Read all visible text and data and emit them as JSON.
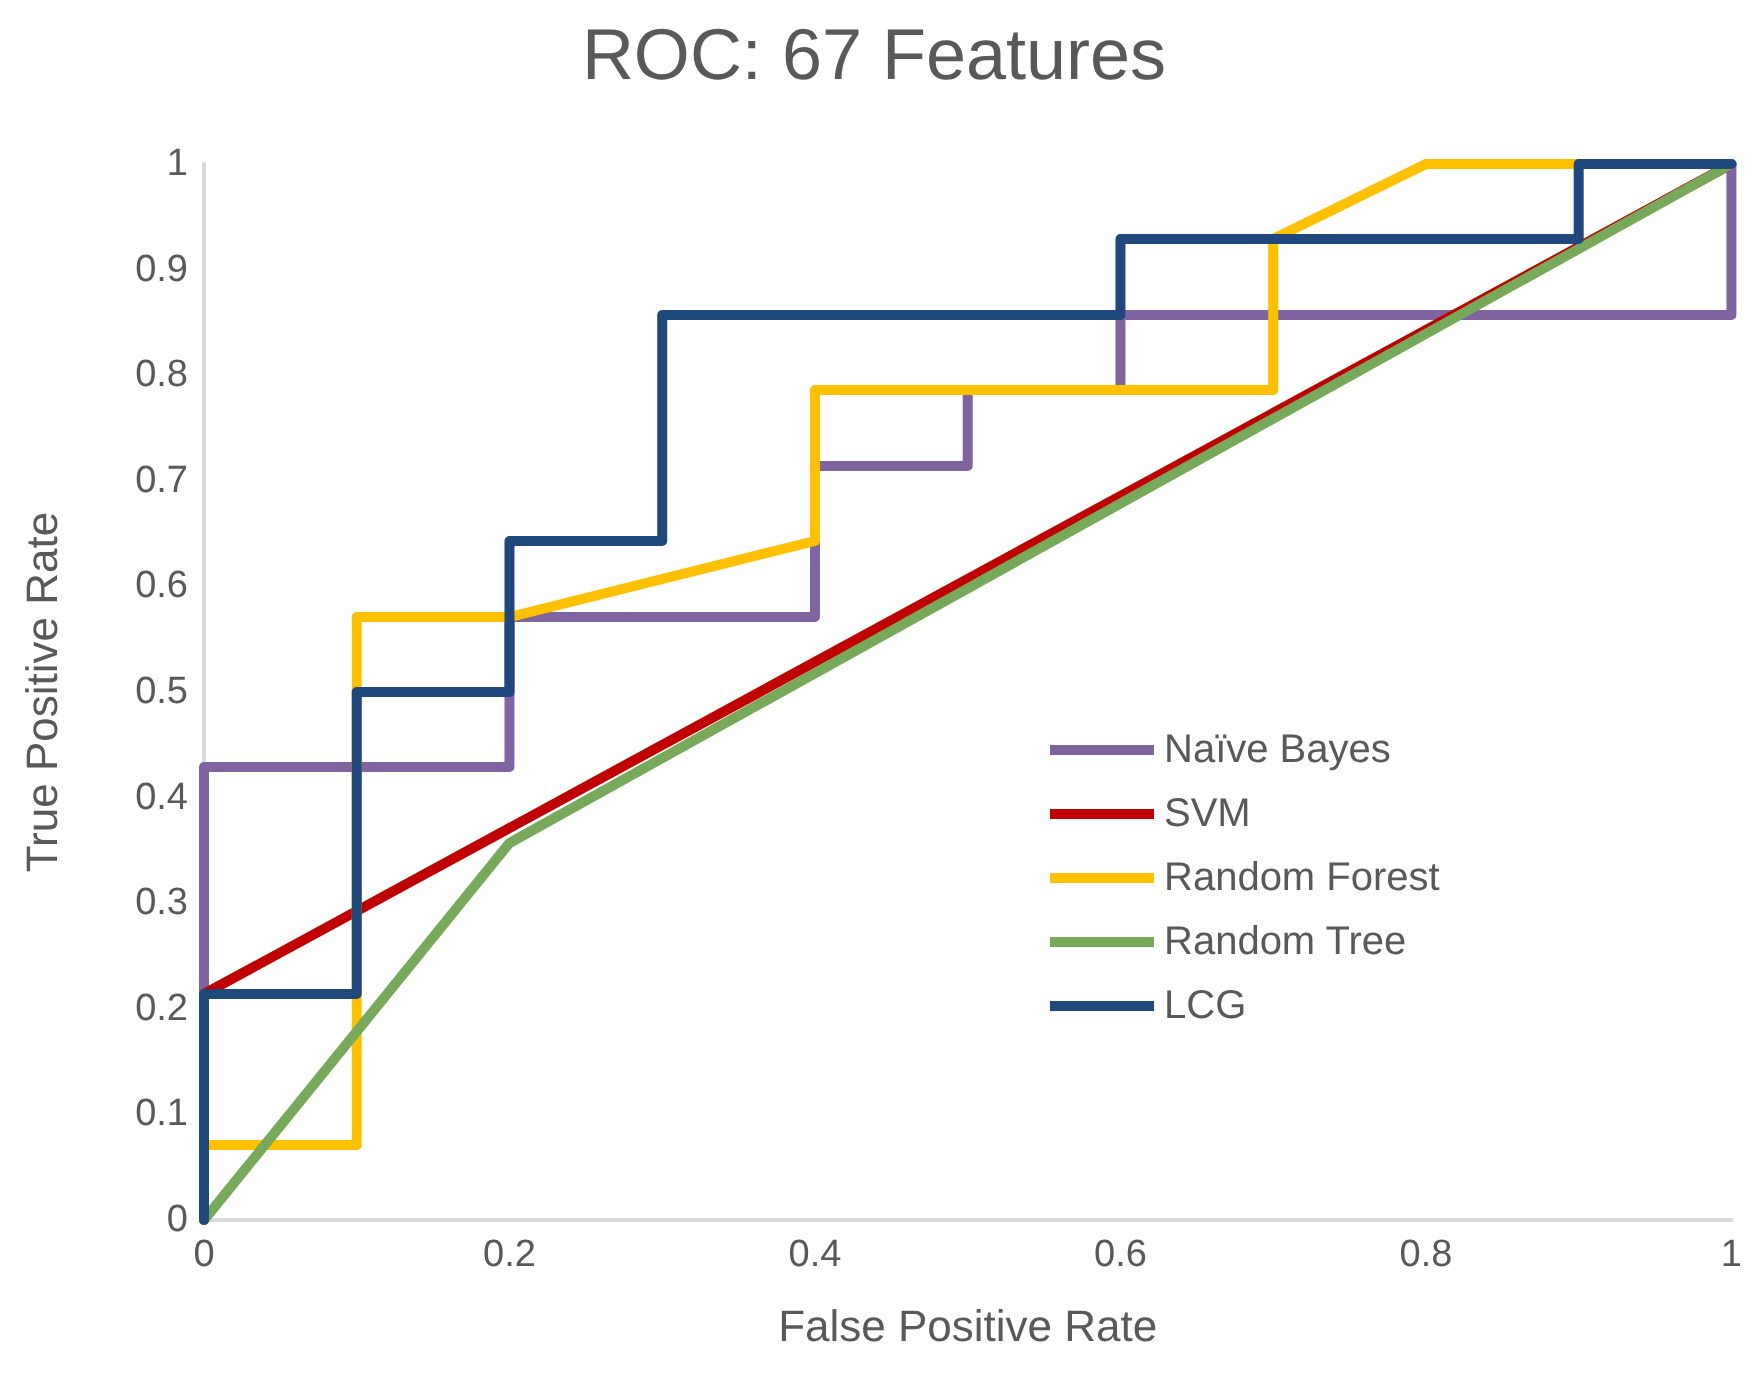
{
  "chart_data": {
    "type": "line",
    "title": "ROC: 67 Features",
    "xlabel": "False Positive Rate",
    "ylabel": "True Positive Rate",
    "xlim": [
      0,
      1
    ],
    "xticks": [
      0,
      0.2,
      0.4,
      0.6,
      0.8,
      1
    ],
    "ylim": [
      0,
      1
    ],
    "yticks": [
      0,
      0.1,
      0.2,
      0.3,
      0.4,
      0.5,
      0.6,
      0.7,
      0.8,
      0.9,
      1
    ],
    "grid": false,
    "legend": "right",
    "marker": "none",
    "line_style": "solid",
    "series": [
      {
        "name": "Naïve Bayes",
        "color": "#8064a2",
        "x": [
          0,
          0,
          0.2,
          0.2,
          0.4,
          0.4,
          0.5,
          0.5,
          0.6,
          0.6,
          1,
          1
        ],
        "values": [
          0,
          0.429,
          0.429,
          0.571,
          0.571,
          0.714,
          0.714,
          0.786,
          0.786,
          0.857,
          0.857,
          1
        ]
      },
      {
        "name": "SVM",
        "color": "#c00000",
        "x": [
          0,
          0,
          1
        ],
        "values": [
          0,
          0.214,
          1
        ]
      },
      {
        "name": "Random Forest",
        "color": "#ffc000",
        "x": [
          0,
          0,
          0.1,
          0.1,
          0.2,
          0.4,
          0.4,
          0.7,
          0.7,
          0.8,
          1
        ],
        "values": [
          0,
          0.071,
          0.071,
          0.571,
          0.571,
          0.643,
          0.786,
          0.786,
          0.929,
          1,
          1
        ]
      },
      {
        "name": "Random Tree",
        "color": "#77a95a",
        "x": [
          0,
          0.2,
          1
        ],
        "values": [
          0,
          0.357,
          1
        ]
      },
      {
        "name": "LCG",
        "color": "#1f497d",
        "x": [
          0,
          0,
          0.1,
          0.1,
          0.2,
          0.2,
          0.3,
          0.3,
          0.6,
          0.6,
          0.9,
          0.9,
          1
        ],
        "values": [
          0,
          0.214,
          0.214,
          0.5,
          0.5,
          0.643,
          0.643,
          0.857,
          0.857,
          0.929,
          0.929,
          1,
          1
        ]
      }
    ]
  }
}
